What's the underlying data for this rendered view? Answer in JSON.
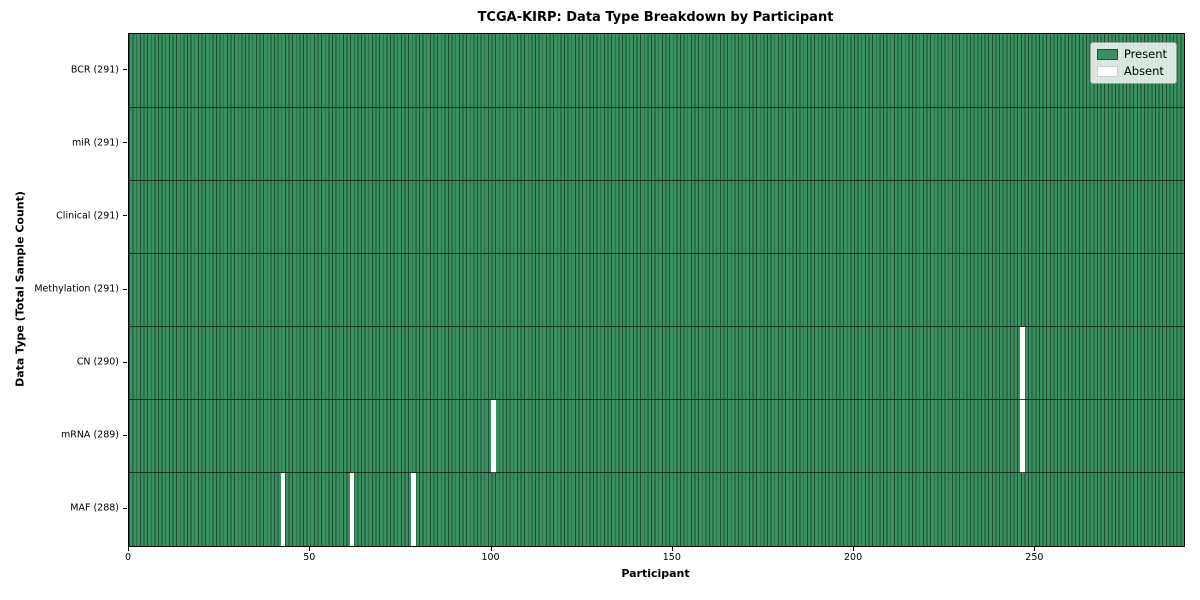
{
  "figure": {
    "title": "TCGA-KIRP: Data Type Breakdown by Participant",
    "xlabel": "Participant",
    "ylabel": "Data Type (Total Sample Count)"
  },
  "chart_data": {
    "type": "heatmap",
    "title": "TCGA-KIRP: Data Type Breakdown by Participant",
    "xlabel": "Participant",
    "ylabel": "Data Type (Total Sample Count)",
    "n_participants": 291,
    "xlim": [
      0,
      291
    ],
    "x_ticks": [
      0,
      50,
      100,
      150,
      200,
      250
    ],
    "grid": false,
    "legend_position": "upper right",
    "rows": [
      {
        "label": "BCR (291)",
        "data_type": "BCR",
        "present_count": 291,
        "absent_participants": []
      },
      {
        "label": "miR (291)",
        "data_type": "miR",
        "present_count": 291,
        "absent_participants": []
      },
      {
        "label": "Clinical (291)",
        "data_type": "Clinical",
        "present_count": 291,
        "absent_participants": []
      },
      {
        "label": "Methylation (291)",
        "data_type": "Methylation",
        "present_count": 291,
        "absent_participants": []
      },
      {
        "label": "CN (290)",
        "data_type": "CN",
        "present_count": 290,
        "absent_participants": [
          246
        ]
      },
      {
        "label": "mRNA (289)",
        "data_type": "mRNA",
        "present_count": 289,
        "absent_participants": [
          100,
          246
        ]
      },
      {
        "label": "MAF (288)",
        "data_type": "MAF",
        "present_count": 288,
        "absent_participants": [
          42,
          61,
          78
        ]
      }
    ],
    "legend": [
      {
        "label": "Present",
        "color": "#3a9160"
      },
      {
        "label": "Absent",
        "color": "#ffffff"
      }
    ],
    "colors": {
      "present_fill": "#3a9160",
      "cell_edge": "#1e4f34",
      "absent_fill": "#ffffff",
      "row_divider": "rgba(15,25,18,0.8)",
      "plot_border": "#000000",
      "background": "#ffffff"
    }
  }
}
